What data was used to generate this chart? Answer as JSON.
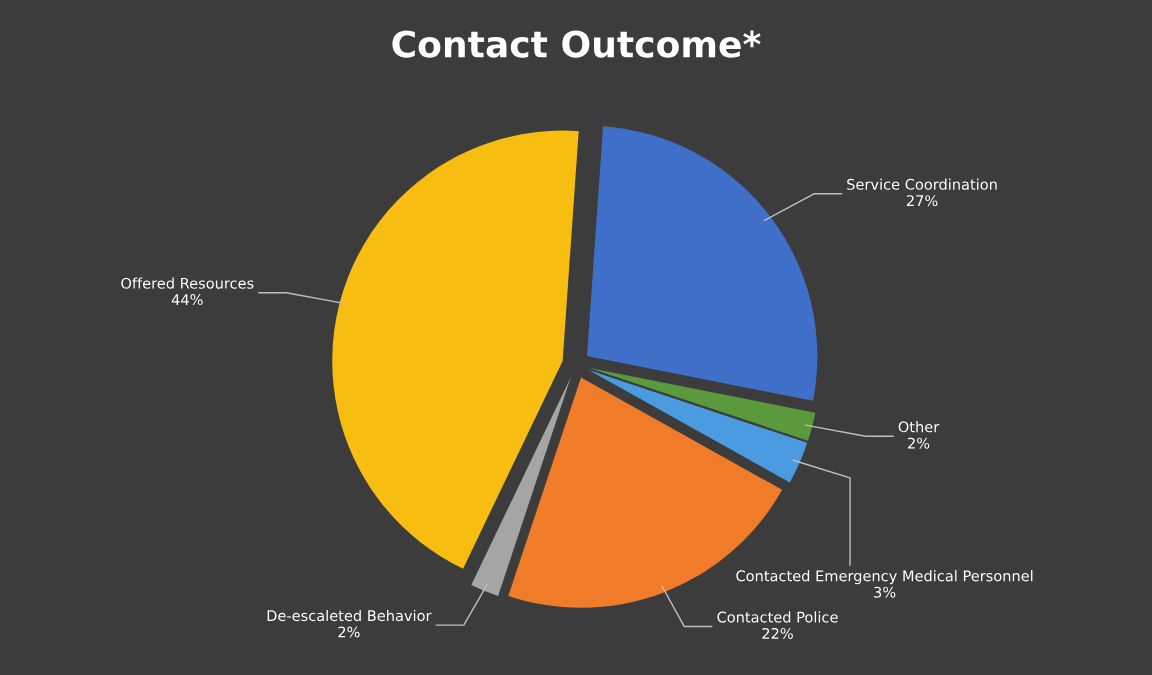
{
  "chart_data": {
    "type": "pie",
    "title": "Contact Outcome*",
    "categories": [
      "Service Coordination",
      "Other",
      "Contacted Emergency Medical Personnel",
      "Contacted Police",
      "De-escaleted Behavior",
      "Offered Resources"
    ],
    "values": [
      27,
      2,
      3,
      22,
      2,
      44
    ],
    "value_labels": [
      "27%",
      "2%",
      "3%",
      "22%",
      "2%",
      "44%"
    ],
    "colors": [
      "#3f6fc8",
      "#5b9a3c",
      "#4a9be0",
      "#f07c2a",
      "#a5a5a5",
      "#f7bd10"
    ]
  }
}
